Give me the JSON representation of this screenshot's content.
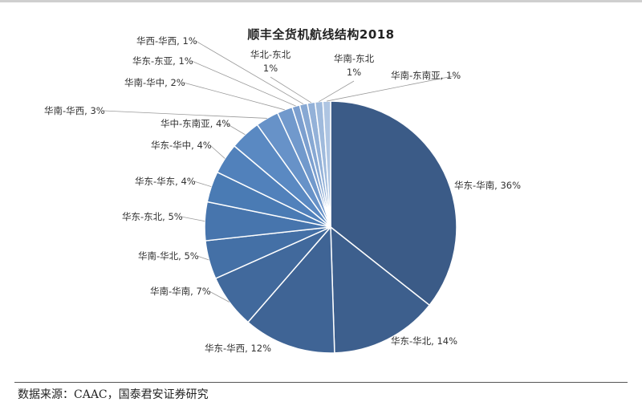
{
  "page": {
    "source": "数据来源：CAAC，国泰君安证券研究"
  },
  "chart_data": {
    "type": "pie",
    "title": "顺丰全货机航线结构2018",
    "categories": [
      "华东-华南",
      "华东-华北",
      "华东-华西",
      "华南-华南",
      "华南-华北",
      "华东-东北",
      "华东-华东",
      "华东-华中",
      "华中-东南亚",
      "华南-华西",
      "华南-华中",
      "华东-东亚",
      "华西-华西",
      "华北-东北",
      "华南-东北",
      "华南-东南亚"
    ],
    "values": [
      36,
      14,
      12,
      7,
      5,
      5,
      4,
      4,
      4,
      3,
      2,
      1,
      1,
      1,
      1,
      1
    ],
    "labels": [
      "华东-华南, 36%",
      "华东-华北, 14%",
      "华东-华西, 12%",
      "华南-华南, 7%",
      "华南-华北, 5%",
      "华东-东北, 5%",
      "华东-华东, 4%",
      "华东-华中, 4%",
      "华中-东南亚, 4%",
      "华南-华西, 3%",
      "华南-华中, 2%",
      "华东-东亚, 1%",
      "华西-华西, 1%",
      "华北-东北, 1%",
      "华南-东北, 1%",
      "华南-东南亚, 1%"
    ],
    "colors": [
      "#3b5b87",
      "#3d5f8d",
      "#3f6495",
      "#41699c",
      "#4470a6",
      "#4775ad",
      "#4a7bb4",
      "#5181bb",
      "#5a89c2",
      "#6792c8",
      "#7199cc",
      "#7c9fcf",
      "#87a8d3",
      "#93b1d8",
      "#9fbadc",
      "#aec5e2"
    ],
    "legend": "none"
  }
}
